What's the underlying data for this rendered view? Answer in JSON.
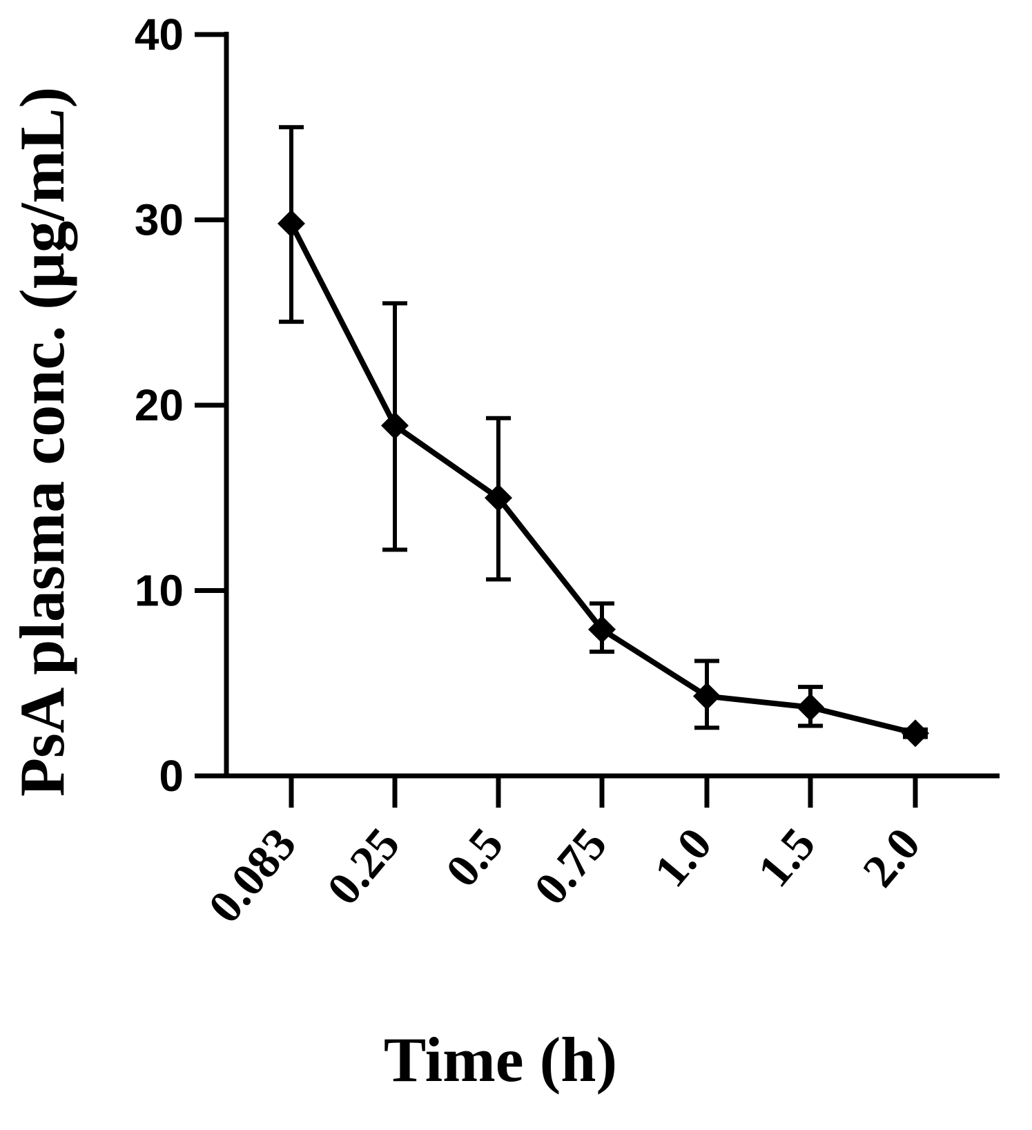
{
  "chart_data": {
    "type": "line",
    "xlabel": "Time (h)",
    "ylabel": "PsA plasma conc. (μg/mL)",
    "categories": [
      "0.083",
      "0.25",
      "0.5",
      "0.75",
      "1.0",
      "1.5",
      "2.0"
    ],
    "ylim": [
      0,
      40
    ],
    "yticks": [
      "0",
      "10",
      "20",
      "30",
      "40"
    ],
    "series": [
      {
        "values": [
          29.8,
          18.9,
          15.0,
          7.9,
          4.3,
          3.7,
          2.3
        ],
        "error_low": [
          24.5,
          12.2,
          10.6,
          6.7,
          2.6,
          2.7,
          2.1
        ],
        "error_high": [
          35.0,
          25.5,
          19.3,
          9.3,
          6.2,
          4.8,
          2.5
        ],
        "marker": "diamond",
        "color": "#000000"
      }
    ]
  }
}
